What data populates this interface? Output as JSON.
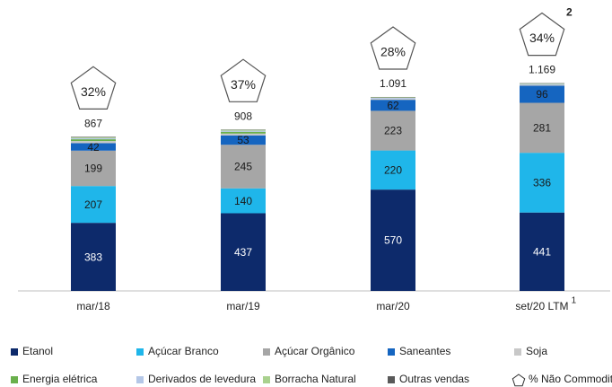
{
  "chart_data": {
    "type": "stacked_bar",
    "categories": [
      "mar/18",
      "mar/19",
      "mar/20",
      "set/20 LTM"
    ],
    "category_notes": [
      null,
      null,
      null,
      "1"
    ],
    "series": [
      {
        "name": "Etanol",
        "color": "#0d2a6b",
        "show_labels": true,
        "values": [
          383,
          437,
          570,
          441
        ]
      },
      {
        "name": "Açúcar Branco",
        "color": "#1fb6ea",
        "show_labels": true,
        "values": [
          207,
          140,
          220,
          336
        ]
      },
      {
        "name": "Açúcar Orgânico",
        "color": "#a6a6a6",
        "show_labels": true,
        "values": [
          199,
          245,
          223,
          281
        ]
      },
      {
        "name": "Saneantes",
        "color": "#1565c0",
        "show_labels": true,
        "values": [
          42,
          53,
          62,
          96
        ]
      },
      {
        "name": "Soja",
        "color": "#c8c8c8",
        "show_labels": false,
        "values": [
          12,
          10,
          6,
          5
        ]
      },
      {
        "name": "Energia elétrica",
        "color": "#6ab04c",
        "show_labels": false,
        "values": [
          10,
          10,
          0,
          0
        ]
      },
      {
        "name": "Derivados de levedura",
        "color": "#b4c7e7",
        "show_labels": false,
        "values": [
          6,
          6,
          5,
          5
        ]
      },
      {
        "name": "Borracha Natural",
        "color": "#a9d18e",
        "show_labels": false,
        "values": [
          5,
          5,
          3,
          3
        ]
      },
      {
        "name": "Outras vendas",
        "color": "#595959",
        "show_labels": false,
        "values": [
          3,
          2,
          2,
          2
        ]
      }
    ],
    "totals": {
      "values": [
        867,
        908,
        1091,
        1169
      ],
      "value_labels": [
        "867",
        "908",
        "1.091",
        "1.169"
      ]
    },
    "non_commodity": {
      "name": "% Não Commodit",
      "values": [
        32,
        37,
        28,
        34
      ],
      "value_labels": [
        "32%",
        "37%",
        "28%",
        "34%"
      ],
      "note": "2"
    },
    "ylim": [
      0,
      1500
    ]
  }
}
